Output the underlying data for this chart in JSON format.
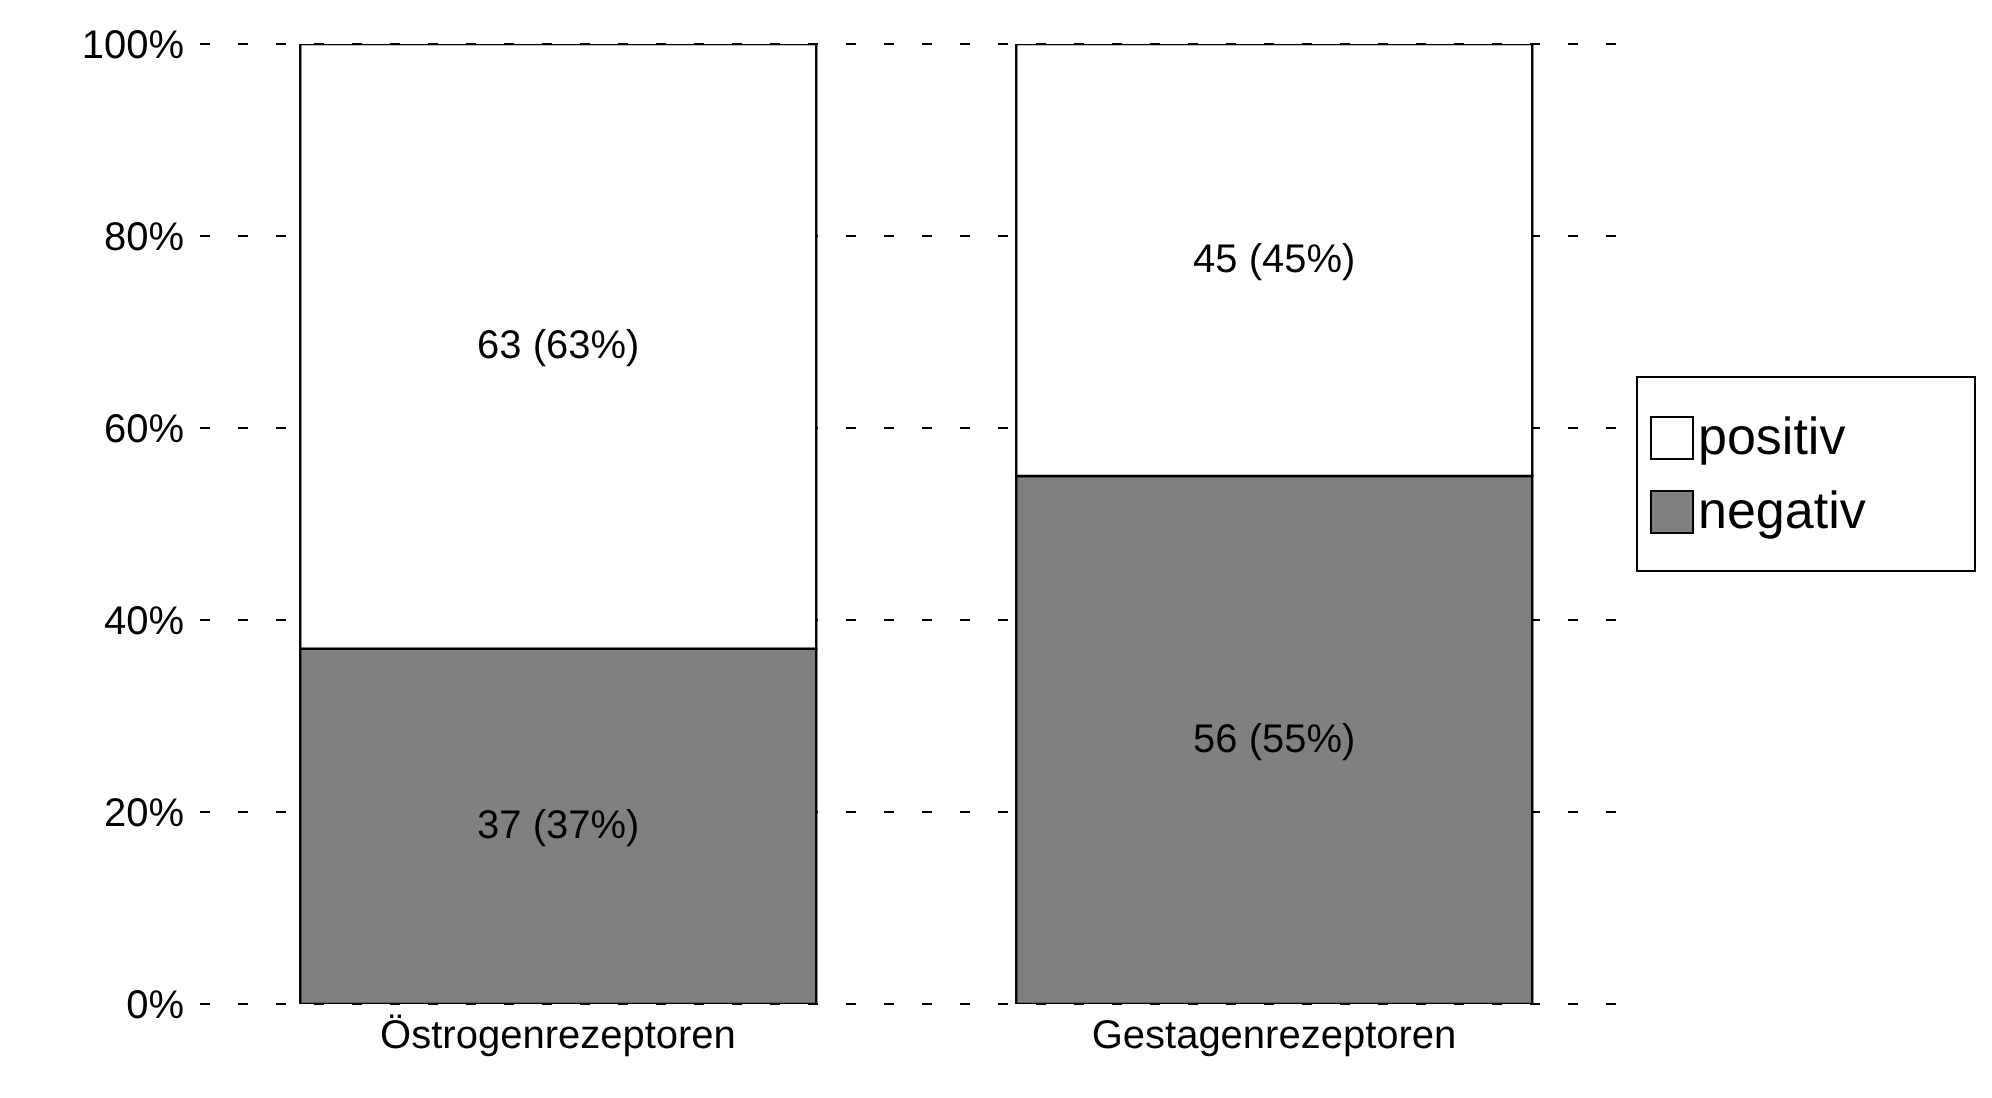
{
  "chart_data": {
    "type": "bar",
    "stacked": true,
    "categories": [
      "Östrogenrezeptoren",
      "Gestagenrezeptoren"
    ],
    "series": [
      {
        "name": "negativ",
        "color": "#808080",
        "values": [
          37,
          55
        ],
        "value_labels": [
          "37 (37%)",
          "56 (55%)"
        ]
      },
      {
        "name": "positiv",
        "color": "#ffffff",
        "values": [
          63,
          45
        ],
        "value_labels": [
          "63 (63%)",
          "45 (45%)"
        ]
      }
    ],
    "ylim": [
      0,
      100
    ],
    "yticks": [
      {
        "value": 0,
        "label": "0%"
      },
      {
        "value": 20,
        "label": "20%"
      },
      {
        "value": 40,
        "label": "40%"
      },
      {
        "value": 60,
        "label": "60%"
      },
      {
        "value": 80,
        "label": "80%"
      },
      {
        "value": 100,
        "label": "100%"
      }
    ],
    "grid": "y",
    "legend": "right"
  }
}
